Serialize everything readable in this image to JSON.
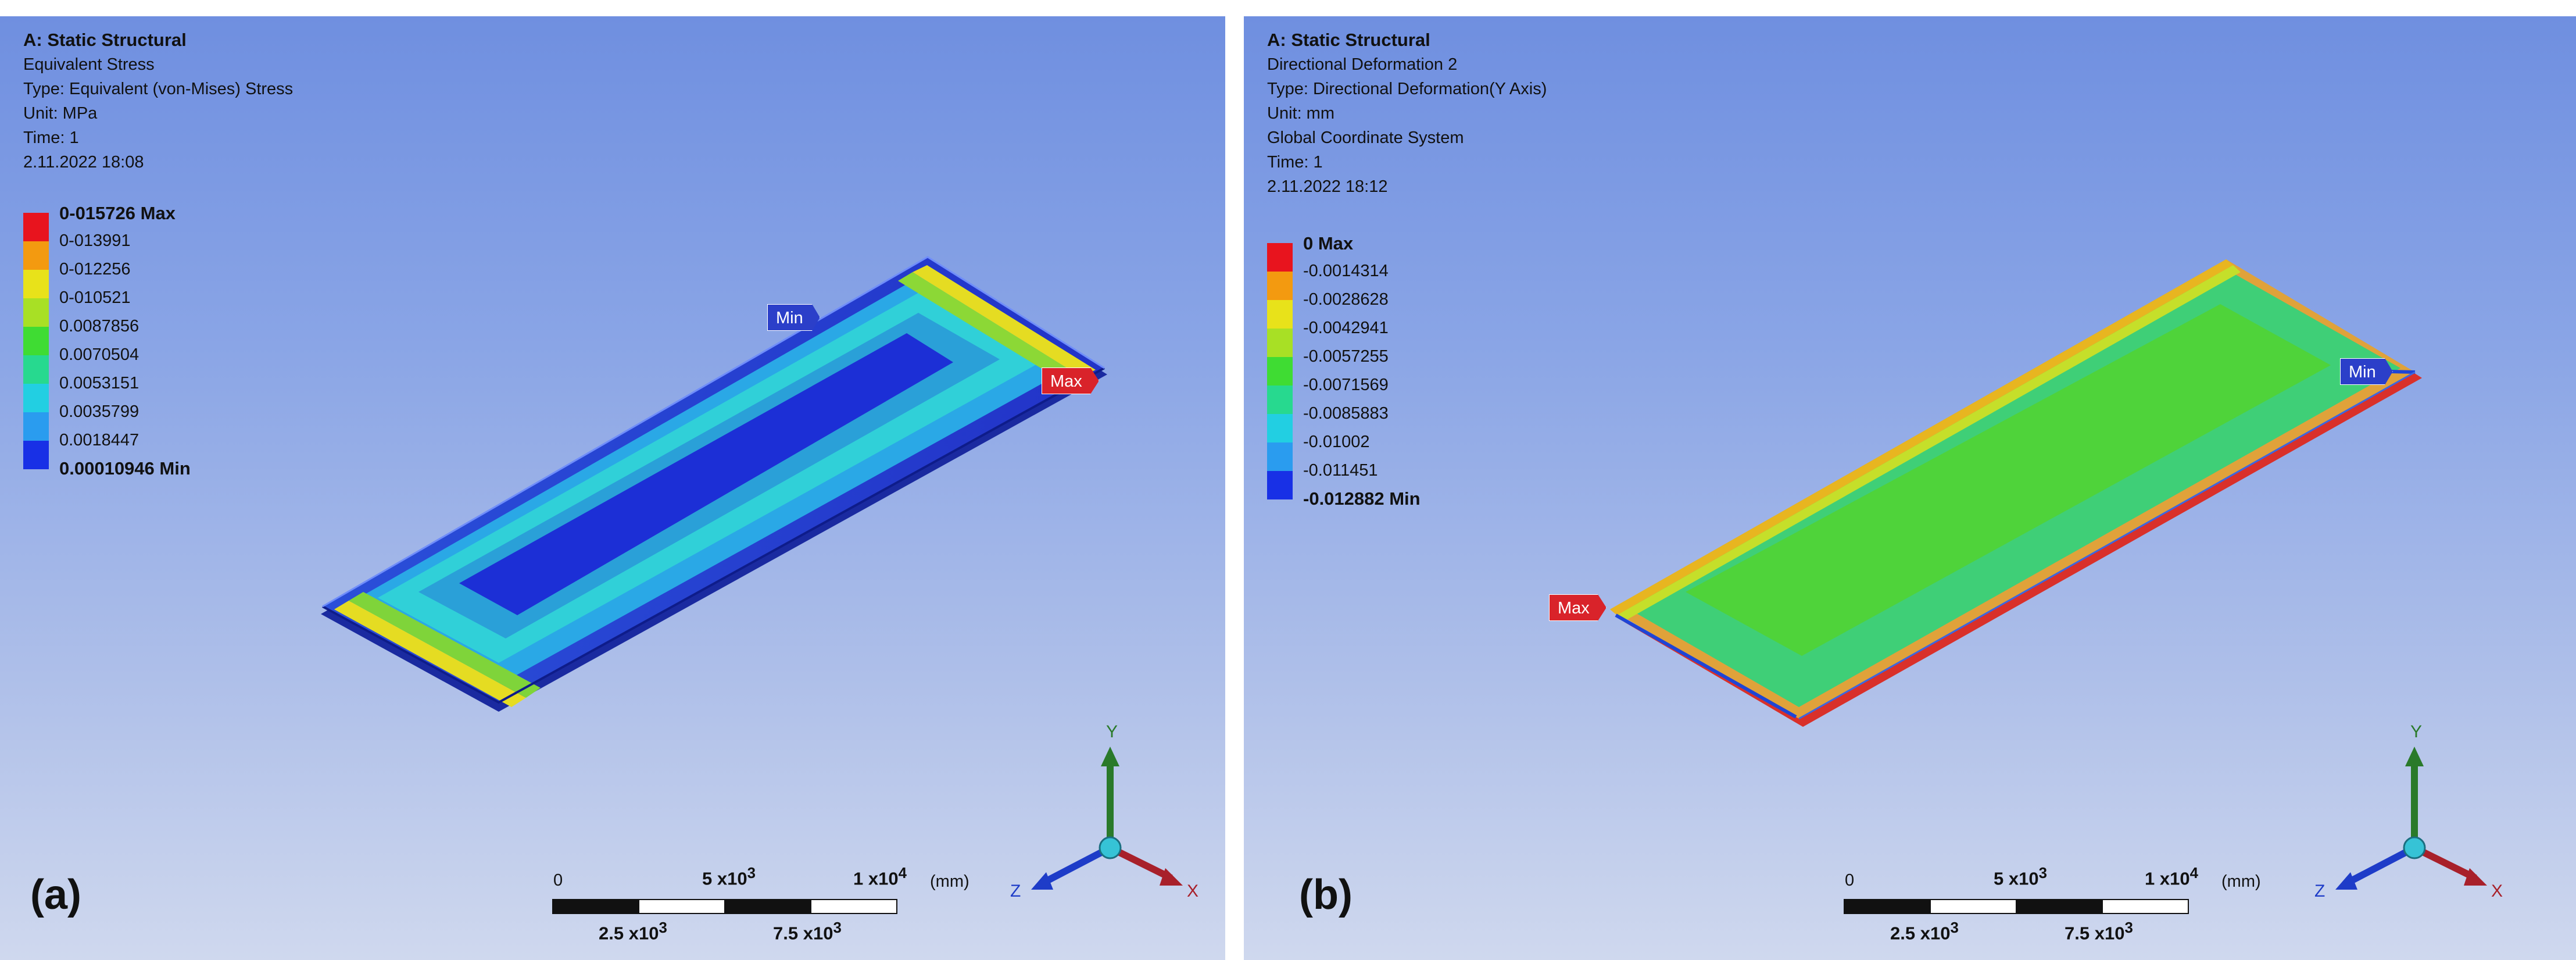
{
  "panel_a": {
    "analysis": "A: Static Structural",
    "lines": [
      "Equivalent Stress",
      "Type: Equivalent (von-Mises) Stress",
      "Unit: MPa",
      "Time: 1",
      "2.11.2022 18:08"
    ],
    "legend": {
      "max_label": "0-015726 Max",
      "levels": [
        "0-013991",
        "0-012256",
        "0-010521",
        "0.0087856",
        "0.0070504",
        "0.0053151",
        "0.0035799",
        "0.0018447"
      ],
      "min_label": "0.00010946 Min",
      "colors": [
        "#e8141e",
        "#f39a10",
        "#e8e21a",
        "#a8e025",
        "#3fdc33",
        "#27d98f",
        "#22cfe2",
        "#2a9cef",
        "#1830e6"
      ]
    },
    "min_tag": "Min",
    "max_tag": "Max",
    "scale": {
      "start": "0",
      "mid_top": "5 x10",
      "mid_top_exp": "3",
      "end_top": "1 x10",
      "end_top_exp": "4",
      "unit": "(mm)",
      "q1": "2.5 x10",
      "q1_exp": "3",
      "q3": "7.5 x10",
      "q3_exp": "3"
    },
    "figure_label": "(a)",
    "axes": {
      "y": "Y",
      "z": "Z",
      "x": "X"
    }
  },
  "panel_b": {
    "analysis": "A: Static Structural",
    "lines": [
      "Directional Deformation 2",
      "Type: Directional Deformation(Y Axis)",
      "Unit: mm",
      "Global Coordinate System",
      "Time: 1",
      "2.11.2022 18:12"
    ],
    "legend": {
      "max_label": "0 Max",
      "levels": [
        "-0.0014314",
        "-0.0028628",
        "-0.0042941",
        "-0.0057255",
        "-0.0071569",
        "-0.0085883",
        "-0.01002",
        "-0.011451"
      ],
      "min_label": "-0.012882 Min",
      "colors": [
        "#e8141e",
        "#f39a10",
        "#e8e21a",
        "#a8e025",
        "#3fdc33",
        "#27d98f",
        "#22cfe2",
        "#2a9cef",
        "#1830e6"
      ]
    },
    "min_tag": "Min",
    "max_tag": "Max",
    "scale": {
      "start": "0",
      "mid_top": "5 x10",
      "mid_top_exp": "3",
      "end_top": "1 x10",
      "end_top_exp": "4",
      "unit": "(mm)",
      "q1": "2.5 x10",
      "q1_exp": "3",
      "q3": "7.5 x10",
      "q3_exp": "3"
    },
    "figure_label": "(b)",
    "axes": {
      "y": "Y",
      "z": "Z",
      "x": "X"
    }
  }
}
